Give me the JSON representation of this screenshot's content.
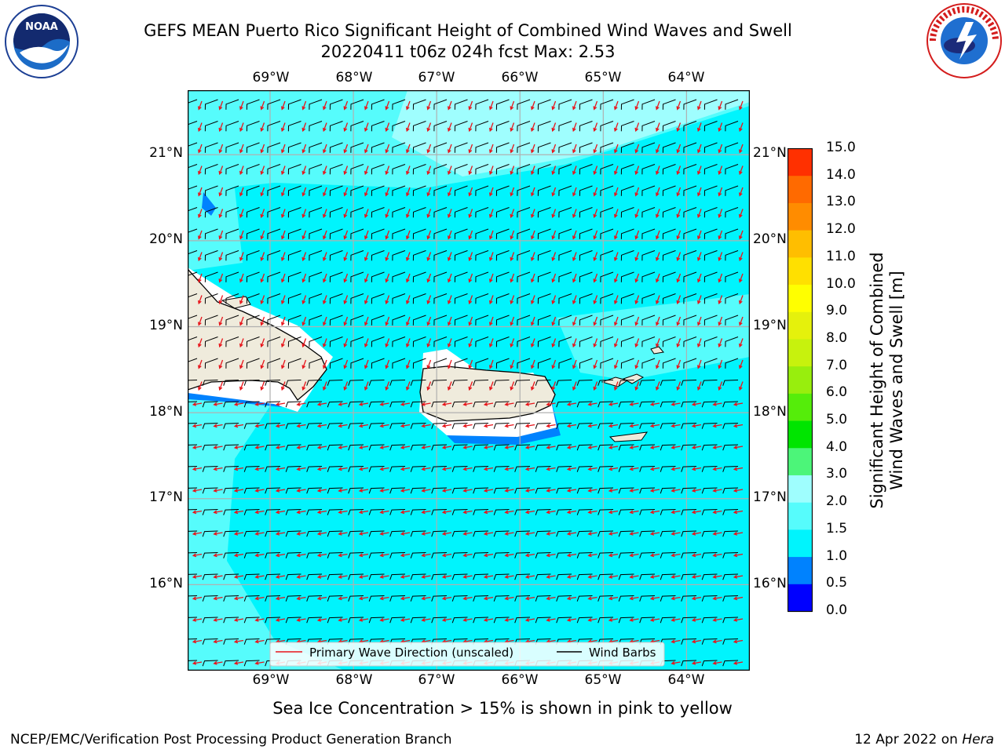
{
  "title": {
    "line1": "GEFS MEAN Puerto Rico Significant Height of Combined Wind Waves and Swell",
    "line2": "20220411 t06z 024h fcst   Max: 2.53"
  },
  "logos": {
    "noaa_text": "NOAA",
    "nws_text": "NATIONAL WEATHER SERVICE"
  },
  "map": {
    "lon_ticks": [
      "69°W",
      "68°W",
      "67°W",
      "66°W",
      "65°W",
      "64°W"
    ],
    "lat_ticks": [
      "21°N",
      "20°N",
      "19°N",
      "18°N",
      "17°N",
      "16°N"
    ],
    "lon_range": [
      -69.99,
      -63.24
    ],
    "lat_range": [
      15.0,
      21.75
    ],
    "gridlines": true,
    "colors": {
      "ocean_light": "#9ffefe",
      "ocean_mid": "#56fcfc",
      "ocean_main": "#00f4fd",
      "shallow": "#0082fe",
      "land": "#efebdc",
      "wave_arrow": "#e8141a",
      "barb": "#000000"
    }
  },
  "legend": {
    "wave_label": "Primary Wave Direction (unscaled)",
    "barb_label": "Wind Barbs"
  },
  "colorbar": {
    "levels": [
      "0.0",
      "0.5",
      "1.0",
      "1.5",
      "2.0",
      "3.0",
      "4.0",
      "5.0",
      "6.0",
      "7.0",
      "8.0",
      "9.0",
      "10.0",
      "11.0",
      "12.0",
      "13.0",
      "14.0",
      "15.0"
    ],
    "colors": [
      "#0000ff",
      "#0082fe",
      "#00f4fd",
      "#56fcfc",
      "#9ffefe",
      "#4cf579",
      "#00e500",
      "#55ed0a",
      "#98ee0d",
      "#c7f20d",
      "#e5f10c",
      "#ffff00",
      "#ffe000",
      "#ffbe00",
      "#ff8c00",
      "#ff6a00",
      "#ff3000"
    ],
    "label_line1": "Significant Height of Combined",
    "label_line2": "Wind Waves and Swell [m]"
  },
  "note": "Sea Ice Concentration > 15% is shown in pink to yellow",
  "footer": {
    "left": "NCEP/EMC/Verification Post Processing Product Generation Branch",
    "date": "12 Apr 2022 on ",
    "host": "Hera"
  }
}
